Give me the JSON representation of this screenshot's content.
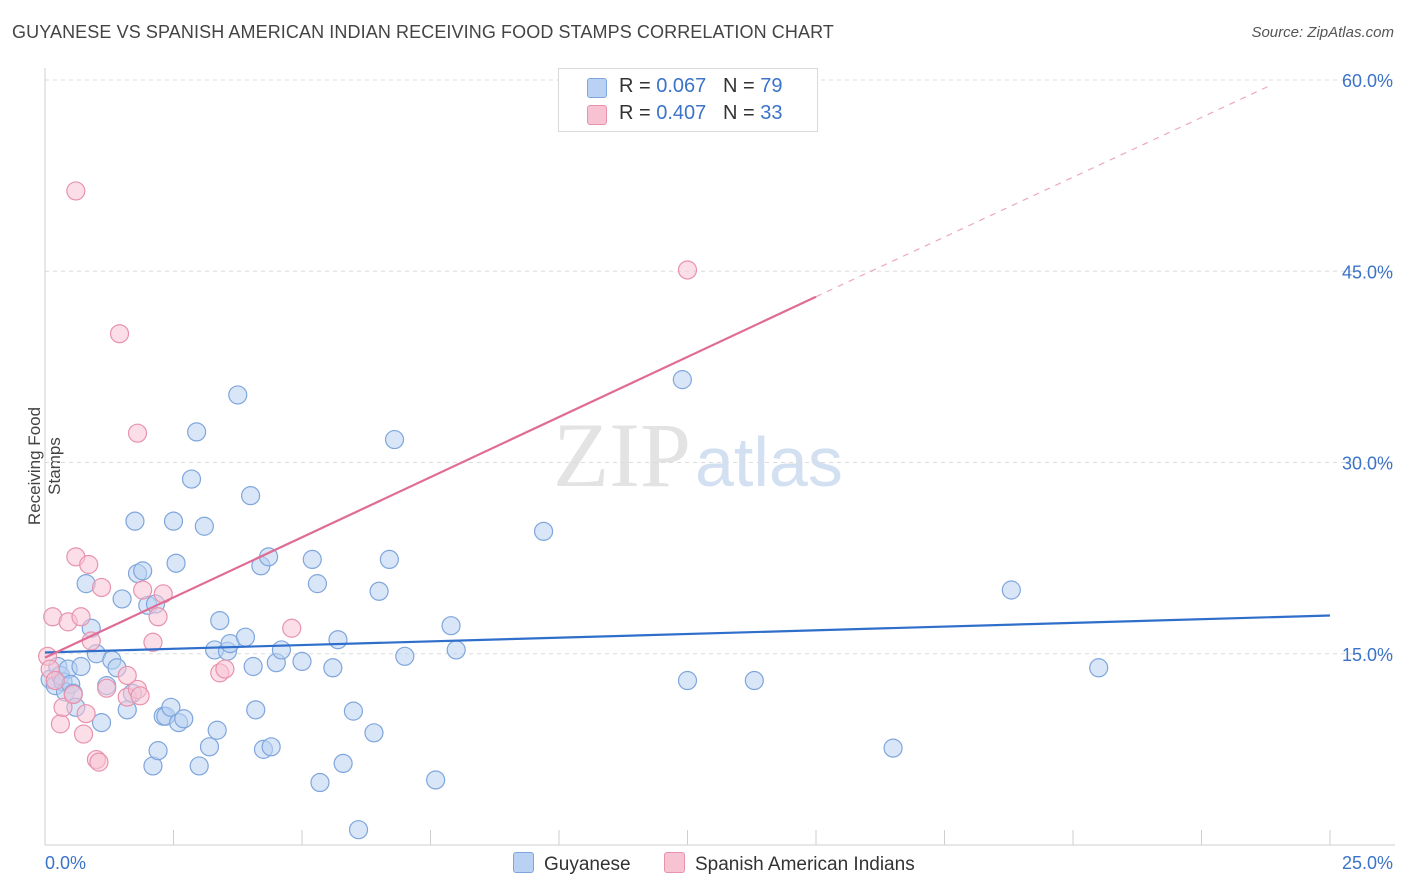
{
  "header": {
    "title": "GUYANESE VS SPANISH AMERICAN INDIAN RECEIVING FOOD STAMPS CORRELATION CHART",
    "source": "Source: ZipAtlas.com"
  },
  "watermark": {
    "zip": "ZIP",
    "atlas": "atlas"
  },
  "legend": {
    "rows": [
      {
        "r_label": "R =",
        "r_value": "0.067",
        "n_label": "N =",
        "n_value": "79"
      },
      {
        "r_label": "R =",
        "r_value": "0.407",
        "n_label": "N =",
        "n_value": "33"
      }
    ]
  },
  "bottom_legend": {
    "guyanese": "Guyanese",
    "spanish": "Spanish American Indians"
  },
  "colors": {
    "blue_fill": "#b9d1f3",
    "blue_stroke": "#7fa6dc",
    "blue_line": "#2f6fcb",
    "pink_fill": "#f7c3d3",
    "pink_stroke": "#e893ad",
    "pink_line": "#e06c95",
    "tick_label": "#3b73c9",
    "grid": "#dcdcdc"
  },
  "chart_data": {
    "type": "scatter",
    "title": "GUYANESE VS SPANISH AMERICAN INDIAN RECEIVING FOOD STAMPS CORRELATION CHART",
    "xlabel": "",
    "ylabel": "Receiving Food Stamps",
    "xlim": [
      0,
      25
    ],
    "ylim": [
      0,
      60
    ],
    "x_tick_labels": [
      "0.0%",
      "25.0%"
    ],
    "y_tick_labels": [
      "15.0%",
      "30.0%",
      "45.0%",
      "60.0%"
    ],
    "y_ticks": [
      15,
      30,
      45,
      60
    ],
    "grid": true,
    "legend_position": "top-center",
    "series": [
      {
        "name": "Guyanese",
        "R": 0.067,
        "N": 79,
        "trend": {
          "x": [
            0,
            25
          ],
          "y": [
            15.1,
            18.0
          ]
        },
        "points": [
          [
            0.1,
            13.0
          ],
          [
            0.2,
            12.5
          ],
          [
            0.25,
            14.0
          ],
          [
            0.3,
            13.3
          ],
          [
            0.35,
            12.8
          ],
          [
            0.4,
            12.0
          ],
          [
            0.45,
            13.8
          ],
          [
            0.5,
            12.6
          ],
          [
            0.55,
            11.9
          ],
          [
            0.6,
            10.8
          ],
          [
            0.7,
            14.0
          ],
          [
            0.8,
            20.5
          ],
          [
            0.9,
            17.0
          ],
          [
            1.0,
            15.0
          ],
          [
            1.1,
            9.6
          ],
          [
            1.2,
            12.5
          ],
          [
            1.3,
            14.5
          ],
          [
            1.4,
            13.9
          ],
          [
            1.5,
            19.3
          ],
          [
            1.6,
            10.6
          ],
          [
            1.7,
            11.9
          ],
          [
            1.75,
            25.4
          ],
          [
            1.8,
            21.3
          ],
          [
            1.9,
            21.5
          ],
          [
            2.0,
            18.8
          ],
          [
            2.1,
            6.2
          ],
          [
            2.15,
            18.9
          ],
          [
            2.2,
            7.4
          ],
          [
            2.3,
            10.1
          ],
          [
            2.35,
            10.1
          ],
          [
            2.45,
            10.8
          ],
          [
            2.5,
            25.4
          ],
          [
            2.55,
            22.1
          ],
          [
            2.6,
            9.6
          ],
          [
            2.7,
            9.9
          ],
          [
            2.85,
            28.7
          ],
          [
            2.95,
            32.4
          ],
          [
            3.0,
            6.2
          ],
          [
            3.1,
            25.0
          ],
          [
            3.2,
            7.7
          ],
          [
            3.3,
            15.3
          ],
          [
            3.35,
            9.0
          ],
          [
            3.4,
            17.6
          ],
          [
            3.55,
            15.2
          ],
          [
            3.6,
            15.8
          ],
          [
            3.75,
            35.3
          ],
          [
            3.9,
            16.3
          ],
          [
            4.0,
            27.4
          ],
          [
            4.05,
            14.0
          ],
          [
            4.1,
            10.6
          ],
          [
            4.2,
            21.9
          ],
          [
            4.25,
            7.5
          ],
          [
            4.35,
            22.6
          ],
          [
            4.4,
            7.7
          ],
          [
            4.5,
            14.3
          ],
          [
            4.6,
            15.3
          ],
          [
            5.0,
            14.4
          ],
          [
            5.2,
            22.4
          ],
          [
            5.3,
            20.5
          ],
          [
            5.35,
            4.9
          ],
          [
            5.6,
            13.9
          ],
          [
            5.7,
            16.1
          ],
          [
            5.8,
            6.4
          ],
          [
            6.0,
            10.5
          ],
          [
            6.1,
            1.2
          ],
          [
            6.4,
            8.8
          ],
          [
            6.5,
            19.9
          ],
          [
            6.7,
            22.4
          ],
          [
            6.8,
            31.8
          ],
          [
            7.0,
            14.8
          ],
          [
            7.6,
            5.1
          ],
          [
            7.9,
            17.2
          ],
          [
            8.0,
            15.3
          ],
          [
            9.7,
            24.6
          ],
          [
            12.4,
            36.5
          ],
          [
            12.5,
            12.9
          ],
          [
            13.8,
            12.9
          ],
          [
            16.5,
            7.6
          ],
          [
            18.8,
            20.0
          ],
          [
            20.5,
            13.9
          ]
        ]
      },
      {
        "name": "Spanish American Indians",
        "R": 0.407,
        "N": 33,
        "trend": {
          "x": [
            0,
            15
          ],
          "y": [
            14.7,
            43.0
          ]
        },
        "trend_dashed": {
          "x": [
            15,
            23.8
          ],
          "y": [
            43.0,
            59.5
          ]
        },
        "points": [
          [
            0.05,
            14.8
          ],
          [
            0.1,
            13.8
          ],
          [
            0.15,
            17.9
          ],
          [
            0.3,
            9.5
          ],
          [
            0.35,
            10.8
          ],
          [
            0.45,
            17.5
          ],
          [
            0.55,
            11.8
          ],
          [
            0.6,
            51.3
          ],
          [
            0.6,
            22.6
          ],
          [
            0.7,
            17.9
          ],
          [
            0.75,
            8.7
          ],
          [
            0.8,
            10.3
          ],
          [
            0.85,
            22.0
          ],
          [
            0.9,
            16.0
          ],
          [
            1.0,
            6.7
          ],
          [
            1.05,
            6.5
          ],
          [
            1.1,
            20.2
          ],
          [
            1.2,
            12.3
          ],
          [
            1.45,
            40.1
          ],
          [
            1.6,
            11.6
          ],
          [
            1.6,
            13.3
          ],
          [
            1.8,
            32.3
          ],
          [
            1.8,
            12.2
          ],
          [
            1.85,
            11.7
          ],
          [
            1.9,
            20.0
          ],
          [
            2.1,
            15.9
          ],
          [
            2.2,
            17.9
          ],
          [
            2.3,
            19.7
          ],
          [
            3.4,
            13.5
          ],
          [
            3.5,
            13.8
          ],
          [
            4.8,
            17.0
          ],
          [
            12.5,
            45.1
          ],
          [
            0.2,
            12.9
          ]
        ]
      }
    ]
  }
}
